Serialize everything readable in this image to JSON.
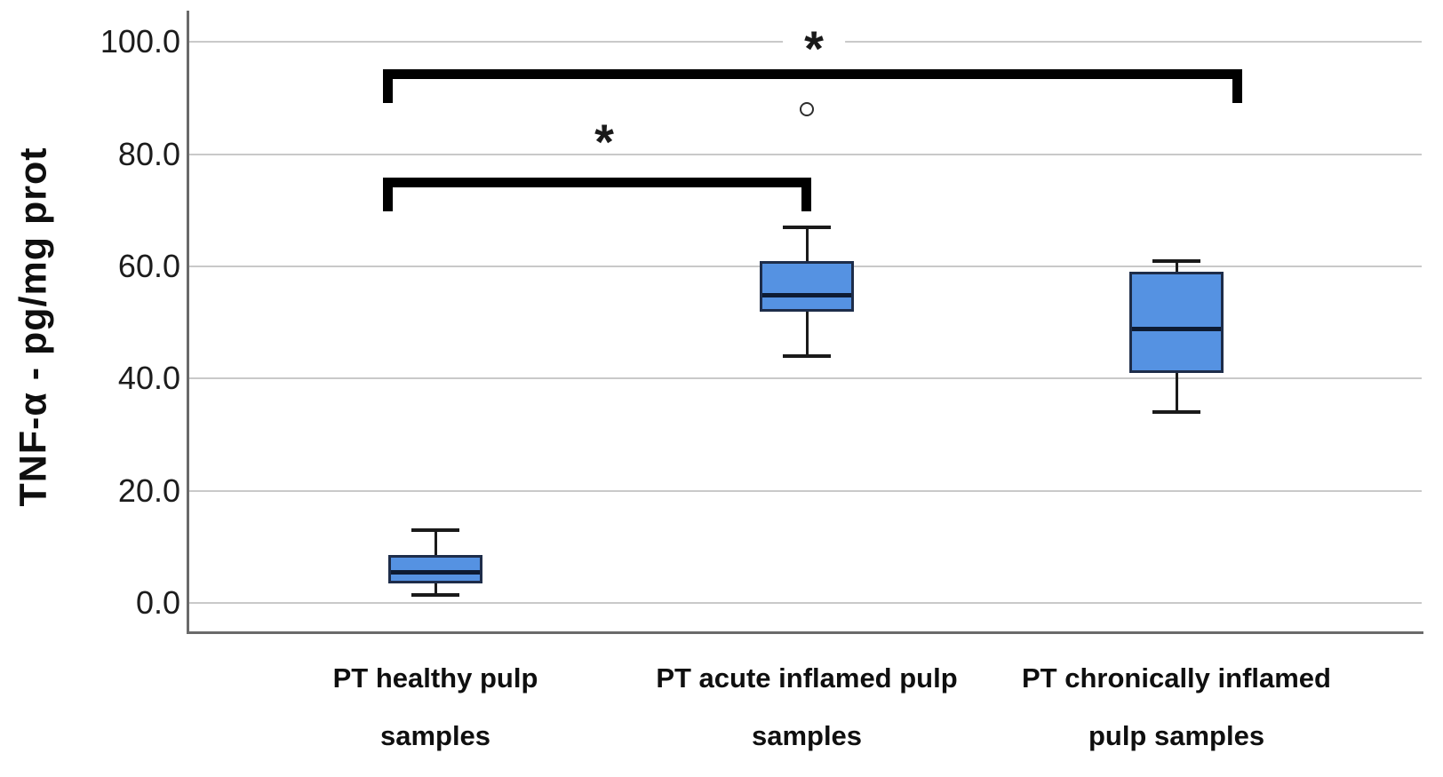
{
  "chart_data": {
    "type": "box",
    "title": "",
    "ylabel": "TNF-α - pg/mg prot",
    "xlabel": "",
    "ylim": [
      0,
      100
    ],
    "grid": "horizontal",
    "legend": "none",
    "yticks": {
      "values": [
        0,
        20,
        40,
        60,
        80,
        100
      ],
      "labels": [
        "0.0",
        "20.0",
        "40.0",
        "60.0",
        "80.0",
        "100.0"
      ]
    },
    "categories": [
      [
        "PT healthy pulp",
        "samples"
      ],
      [
        "PT acute inflamed pulp",
        "samples"
      ],
      [
        "PT chronically inflamed",
        "pulp samples"
      ]
    ],
    "boxes": [
      {
        "name": "PT healthy pulp samples",
        "min": 1.5,
        "q1": 3.5,
        "median": 5.5,
        "q3": 8.5,
        "max": 13,
        "outliers": []
      },
      {
        "name": "PT acute inflamed pulp samples",
        "min": 44,
        "q1": 52,
        "median": 55,
        "q3": 61,
        "max": 67,
        "outliers": [
          88
        ]
      },
      {
        "name": "PT chronically inflamed pulp samples",
        "min": 34,
        "q1": 41,
        "median": 49,
        "q3": 59,
        "max": 61,
        "outliers": []
      }
    ],
    "significance_brackets": [
      {
        "group_a": 0,
        "group_b": 2,
        "label": "*"
      },
      {
        "group_a": 0,
        "group_b": 1,
        "label": "*"
      }
    ],
    "outlier_marker": "circle",
    "colors": {
      "box_fill": "#5592E2",
      "box_border": "#1e2d4a",
      "median": "#0d1b33",
      "whisker": "#1a1a1a",
      "bracket": "#000000",
      "gridline": "#c9c9c9",
      "axis": "#6a6a6a",
      "text": "#1c1c1c"
    }
  }
}
